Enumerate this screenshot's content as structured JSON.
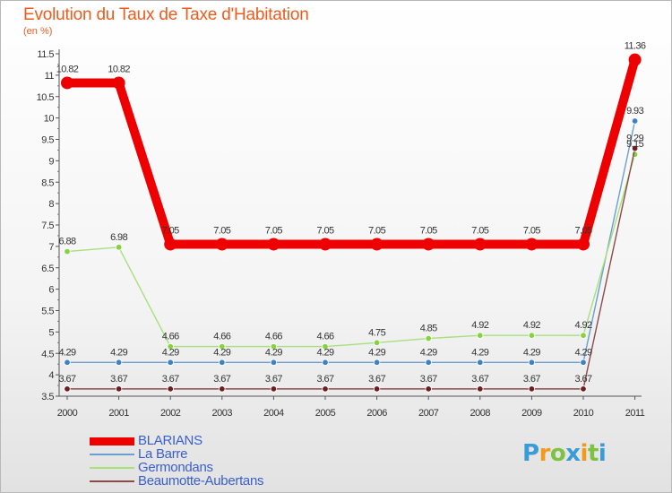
{
  "header": {
    "title": "Evolution du Taux de Taxe d'Habitation",
    "subtitle": "(en %)"
  },
  "chart_data": {
    "type": "line",
    "title": "Evolution du Taux de Taxe d'Habitation",
    "subtitle": "(en %)",
    "xlabel": "",
    "ylabel": "(en %)",
    "categories": [
      "2000",
      "2001",
      "2002",
      "2003",
      "2004",
      "2005",
      "2006",
      "2007",
      "2008",
      "2009",
      "2010",
      "2011"
    ],
    "ylim": [
      3.5,
      11.5
    ],
    "yticks": [
      3.5,
      4,
      4.5,
      5,
      5.5,
      6,
      6.5,
      7,
      7.5,
      8,
      8.5,
      9,
      9.5,
      10,
      10.5,
      11,
      11.5
    ],
    "grid": false,
    "legend_position": "bottom-left",
    "series": [
      {
        "name": "BLARIANS",
        "color": "#ee0000",
        "values": [
          10.82,
          10.82,
          7.05,
          7.05,
          7.05,
          7.05,
          7.05,
          7.05,
          7.05,
          7.05,
          7.05,
          11.36
        ],
        "labels": [
          "10.82",
          "10.82",
          "7.05",
          "7.05",
          "7.05",
          "7.05",
          "7.05",
          "7.05",
          "7.05",
          "7.05",
          "7.05",
          "11.36"
        ]
      },
      {
        "name": "La Barre",
        "color": "#6a9fcf",
        "point_color": "#3e82c6",
        "values": [
          4.29,
          4.29,
          4.29,
          4.29,
          4.29,
          4.29,
          4.29,
          4.29,
          4.29,
          4.29,
          4.29,
          9.93
        ],
        "labels": [
          "4.29",
          "4.29",
          "4.29",
          "4.29",
          "4.29",
          "4.29",
          "4.29",
          "4.29",
          "4.29",
          "4.29",
          "4.29",
          "9.93"
        ]
      },
      {
        "name": "Germondans",
        "color": "#a8e07c",
        "point_color": "#86d23f",
        "values": [
          6.88,
          6.98,
          4.66,
          4.66,
          4.66,
          4.66,
          4.75,
          4.85,
          4.92,
          4.92,
          4.92,
          9.15
        ],
        "labels": [
          "6.88",
          "6.98",
          "4.66",
          "4.66",
          "4.66",
          "4.66",
          "4.75",
          "4.85",
          "4.92",
          "4.92",
          "4.92",
          "9.15"
        ]
      },
      {
        "name": "Beaumotte-Aubertans",
        "color": "#8c4b4b",
        "point_color": "#6e1e1e",
        "values": [
          3.67,
          3.67,
          3.67,
          3.67,
          3.67,
          3.67,
          3.67,
          3.67,
          3.67,
          3.67,
          3.67,
          9.29
        ],
        "labels": [
          "3.67",
          "3.67",
          "3.67",
          "3.67",
          "3.67",
          "3.67",
          "3.67",
          "3.67",
          "3.67",
          "3.67",
          "3.67",
          "9.29"
        ]
      }
    ]
  },
  "logo": {
    "letters": [
      "P",
      "r",
      "o",
      "x",
      "i",
      "t",
      "i"
    ],
    "colors": [
      "#3a9bd9",
      "#f29a1e",
      "#7dc242",
      "#3a9bd9",
      "#f29a1e",
      "#7dc242",
      "#3a9bd9"
    ]
  }
}
